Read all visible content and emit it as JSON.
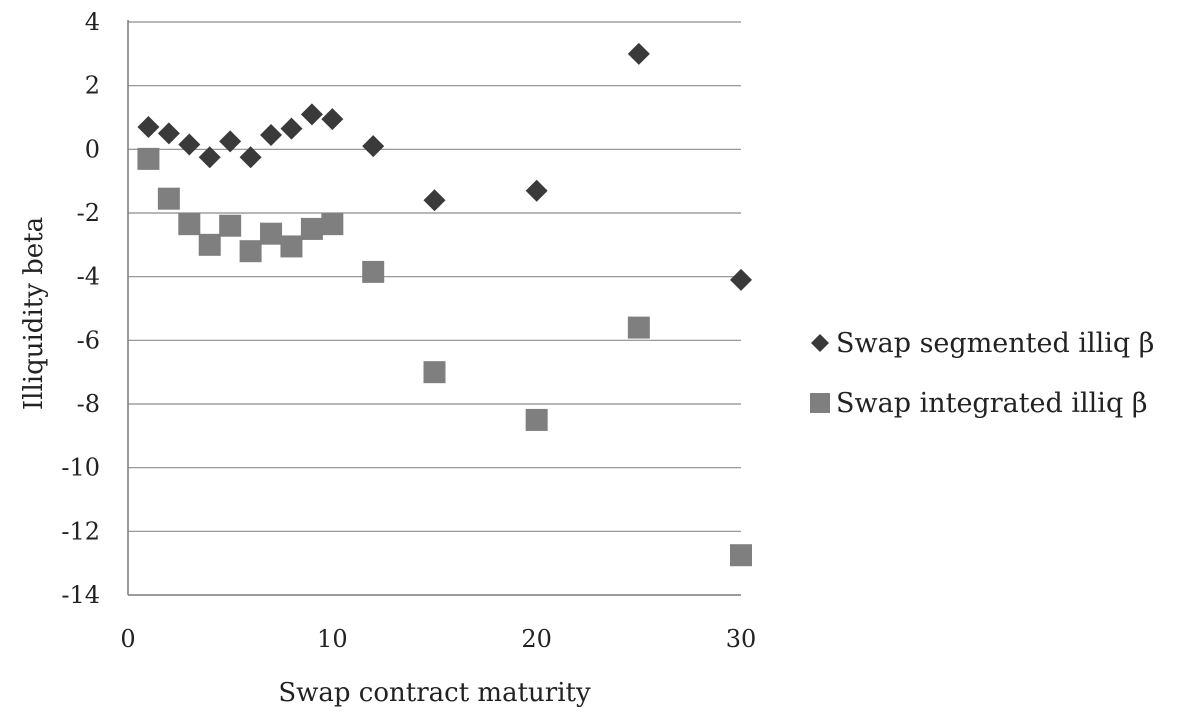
{
  "chart_data": {
    "type": "scatter",
    "title": "",
    "xlabel": "Swap contract maturity",
    "ylabel": "Illiquidity beta",
    "xlim": [
      0,
      30
    ],
    "ylim": [
      -14,
      4
    ],
    "xticks": [
      "0",
      "10",
      "20",
      "30"
    ],
    "yticks": [
      "4",
      "2",
      "0",
      "-2",
      "-4",
      "-6",
      "-8",
      "-10",
      "-12",
      "-14"
    ],
    "grid": "horizontal",
    "legend_position": "right",
    "series": [
      {
        "name": "Swap segmented illiq β",
        "marker": "diamond",
        "color": "#3a3a3a",
        "x": [
          1,
          2,
          3,
          4,
          5,
          6,
          7,
          8,
          9,
          10,
          12,
          15,
          20,
          25,
          30
        ],
        "y": [
          0.7,
          0.5,
          0.15,
          -0.25,
          0.25,
          -0.25,
          0.45,
          0.65,
          1.1,
          0.95,
          0.1,
          -1.6,
          -1.3,
          3.0,
          -4.1
        ]
      },
      {
        "name": "Swap integrated illiq β",
        "marker": "square",
        "color": "#7f7f7f",
        "x": [
          1,
          2,
          3,
          4,
          5,
          6,
          7,
          8,
          9,
          10,
          12,
          15,
          20,
          25,
          30
        ],
        "y": [
          -0.3,
          -1.55,
          -2.35,
          -3.0,
          -2.4,
          -3.2,
          -2.65,
          -3.05,
          -2.5,
          -2.35,
          -3.85,
          -7.0,
          -8.5,
          -5.6,
          -12.75
        ]
      }
    ]
  }
}
